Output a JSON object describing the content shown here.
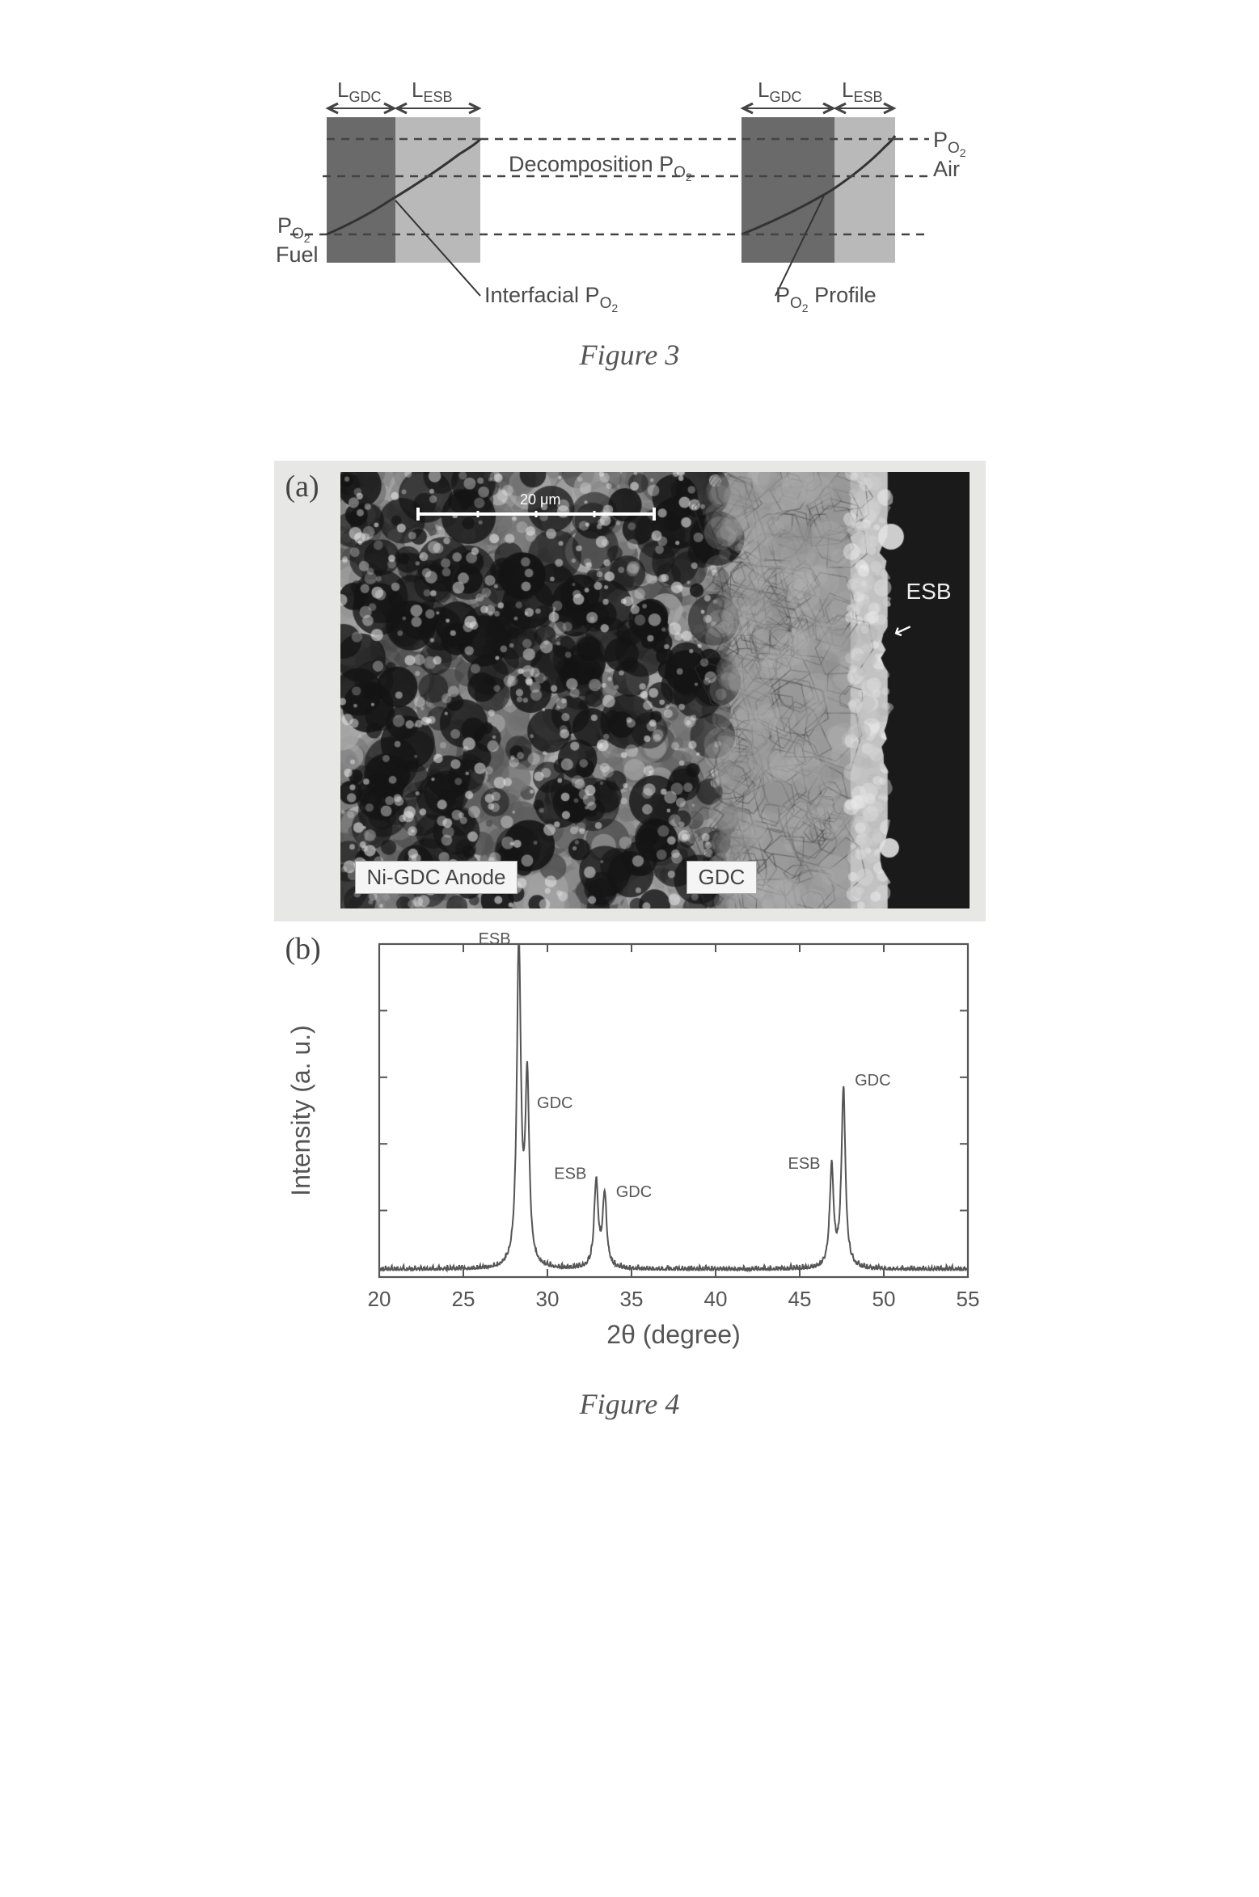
{
  "figure3": {
    "caption": "Figure 3",
    "left_block": {
      "Lgdc_label": "L",
      "Lgdc_sub": "GDC",
      "Lesb_label": "L",
      "Lesb_sub": "ESB",
      "gdc_color": "#6a6a6a",
      "esb_color": "#b9b9b9"
    },
    "right_block": {
      "Lgdc_label": "L",
      "Lgdc_sub": "GDC",
      "Lesb_label": "L",
      "Lesb_sub": "ESB",
      "gdc_color": "#6a6a6a",
      "esb_color": "#b9b9b9"
    },
    "labels": {
      "decomposition": "Decomposition P",
      "decomposition_sub": "O",
      "decomposition_sub2": "2",
      "po2_air_1": "P",
      "po2_air_sub": "O",
      "po2_air_sub2": "2",
      "po2_air_2": "Air",
      "po2_fuel_1": "P",
      "po2_fuel_sub": "O",
      "po2_fuel_sub2": "2",
      "po2_fuel_2": "Fuel",
      "interfacial": "Interfacial P",
      "interfacial_sub": "O",
      "interfacial_sub2": "2",
      "profile": "P",
      "profile_sub": "O",
      "profile_sub2": "2",
      "profile_2": " Profile"
    },
    "dash_color": "#444444",
    "text_color": "#4a4a4a",
    "curve_color": "#333333"
  },
  "figure4": {
    "caption": "Figure 4",
    "panel_a": {
      "label": "(a)",
      "anode_label": "Ni-GDC Anode",
      "gdc_label": "GDC",
      "esb_label": "ESB",
      "scalebar_text": "20 μm",
      "background_right": "#1a1a1a",
      "sem_gray_mid": "#8a8a8a"
    },
    "panel_b": {
      "label": "(b)",
      "type": "xrd-line",
      "xaxis_label": "2θ (degree)",
      "yaxis_label": "Intensity (a. u.)",
      "xlim": [
        20,
        55
      ],
      "xtick_step": 5,
      "xticks": [
        20,
        25,
        30,
        35,
        40,
        45,
        50,
        55
      ],
      "border_color": "#555555",
      "line_color": "#555555",
      "tick_fontsize": 26,
      "axis_label_fontsize": 32,
      "peak_label_fontsize": 20,
      "peaks": [
        {
          "x": 28.3,
          "h": 0.98,
          "label": "ESB",
          "label_dx": -10,
          "label_dy": -4
        },
        {
          "x": 28.8,
          "h": 0.55,
          "label": "GDC",
          "label_dx": 12,
          "label_dy": 30
        },
        {
          "x": 32.9,
          "h": 0.26,
          "label": "ESB",
          "label_dx": -12,
          "label_dy": -2
        },
        {
          "x": 33.4,
          "h": 0.22,
          "label": "GDC",
          "label_dx": 14,
          "label_dy": 4
        },
        {
          "x": 46.9,
          "h": 0.3,
          "label": "ESB",
          "label_dx": -14,
          "label_dy": 2
        },
        {
          "x": 47.6,
          "h": 0.54,
          "label": "GDC",
          "label_dx": 14,
          "label_dy": -2
        }
      ],
      "baseline_noise": 0.015
    }
  }
}
